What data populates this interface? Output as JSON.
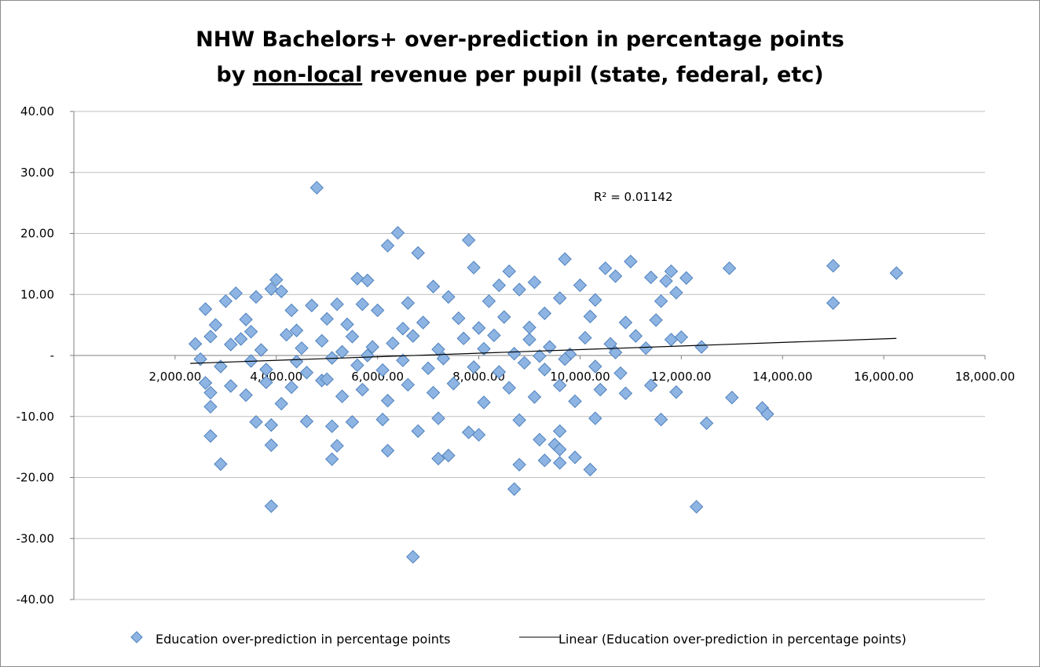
{
  "chart_data": {
    "type": "scatter",
    "title_line1": "NHW Bachelors+ over-prediction in percentage points",
    "title_line2_prefix": "by ",
    "title_line2_underlined": "non-local",
    "title_line2_suffix": " revenue per pupil (state, federal, etc)",
    "xlabel": "",
    "ylabel": "",
    "xlim": [
      0,
      18000
    ],
    "ylim": [
      -40,
      40
    ],
    "x_ticks": [
      {
        "value": 2000,
        "label": "2,000.00"
      },
      {
        "value": 4000,
        "label": "4,000.00"
      },
      {
        "value": 6000,
        "label": "6,000.00"
      },
      {
        "value": 8000,
        "label": "8,000.00"
      },
      {
        "value": 10000,
        "label": "10,000.00"
      },
      {
        "value": 12000,
        "label": "12,000.00"
      },
      {
        "value": 14000,
        "label": "14,000.00"
      },
      {
        "value": 16000,
        "label": "16,000.00"
      },
      {
        "value": 18000,
        "label": "18,000.00"
      }
    ],
    "y_ticks": [
      {
        "value": 40,
        "label": "40.00"
      },
      {
        "value": 30,
        "label": "30.00"
      },
      {
        "value": 20,
        "label": "20.00"
      },
      {
        "value": 10,
        "label": "10.00"
      },
      {
        "value": 0,
        "label": "-"
      },
      {
        "value": -10,
        "label": "-10.00"
      },
      {
        "value": -20,
        "label": "-20.00"
      },
      {
        "value": -30,
        "label": "-30.00"
      },
      {
        "value": -40,
        "label": "-40.00"
      }
    ],
    "grid": true,
    "legend_position": "bottom",
    "series": [
      {
        "name": "Education over-prediction in percentage points",
        "marker_color": "#8db4e2",
        "marker_stroke": "#4f81bd",
        "points": [
          [
            4800,
            27.5
          ],
          [
            6400,
            20.1
          ],
          [
            6200,
            18.0
          ],
          [
            7800,
            18.9
          ],
          [
            6800,
            16.8
          ],
          [
            9700,
            15.8
          ],
          [
            11000,
            15.4
          ],
          [
            15000,
            14.7
          ],
          [
            12950,
            14.3
          ],
          [
            16250,
            13.5
          ],
          [
            10500,
            14.3
          ],
          [
            8600,
            13.8
          ],
          [
            5600,
            12.6
          ],
          [
            5800,
            12.3
          ],
          [
            4000,
            12.4
          ],
          [
            7900,
            14.4
          ],
          [
            10700,
            13.0
          ],
          [
            11400,
            12.8
          ],
          [
            11800,
            13.8
          ],
          [
            12100,
            12.7
          ],
          [
            9100,
            12.0
          ],
          [
            8400,
            11.5
          ],
          [
            7100,
            11.3
          ],
          [
            10000,
            11.5
          ],
          [
            11700,
            12.2
          ],
          [
            3900,
            10.9
          ],
          [
            4100,
            10.5
          ],
          [
            3200,
            10.2
          ],
          [
            8800,
            10.8
          ],
          [
            10300,
            9.1
          ],
          [
            11900,
            10.3
          ],
          [
            15000,
            8.6
          ],
          [
            2600,
            7.6
          ],
          [
            3000,
            8.9
          ],
          [
            4700,
            8.2
          ],
          [
            5200,
            8.4
          ],
          [
            5700,
            8.4
          ],
          [
            6600,
            8.6
          ],
          [
            7400,
            9.6
          ],
          [
            8200,
            8.9
          ],
          [
            9600,
            9.4
          ],
          [
            11600,
            8.9
          ],
          [
            2800,
            5.0
          ],
          [
            3400,
            5.9
          ],
          [
            3600,
            9.6
          ],
          [
            4300,
            7.4
          ],
          [
            5000,
            6.0
          ],
          [
            5400,
            5.1
          ],
          [
            6000,
            7.4
          ],
          [
            6900,
            5.4
          ],
          [
            7600,
            6.1
          ],
          [
            8500,
            6.3
          ],
          [
            9300,
            6.9
          ],
          [
            10200,
            6.4
          ],
          [
            10900,
            5.4
          ],
          [
            11500,
            5.8
          ],
          [
            2400,
            1.9
          ],
          [
            2700,
            3.1
          ],
          [
            3100,
            1.8
          ],
          [
            3300,
            2.7
          ],
          [
            3700,
            0.9
          ],
          [
            4200,
            3.4
          ],
          [
            4500,
            1.2
          ],
          [
            4900,
            2.4
          ],
          [
            5300,
            0.6
          ],
          [
            5500,
            3.1
          ],
          [
            5900,
            1.4
          ],
          [
            6300,
            2.0
          ],
          [
            6700,
            3.2
          ],
          [
            7200,
            1.0
          ],
          [
            7700,
            2.8
          ],
          [
            8100,
            1.1
          ],
          [
            8300,
            3.3
          ],
          [
            8700,
            0.3
          ],
          [
            9000,
            2.6
          ],
          [
            9400,
            1.4
          ],
          [
            9800,
            0.2
          ],
          [
            10100,
            2.9
          ],
          [
            10600,
            1.9
          ],
          [
            11100,
            3.2
          ],
          [
            11300,
            1.2
          ],
          [
            11800,
            2.6
          ],
          [
            12400,
            1.4
          ],
          [
            12000,
            3.0
          ],
          [
            2500,
            -0.6
          ],
          [
            2900,
            -1.8
          ],
          [
            3500,
            -0.9
          ],
          [
            3800,
            -2.3
          ],
          [
            4400,
            -1.0
          ],
          [
            4600,
            -2.8
          ],
          [
            5100,
            -0.4
          ],
          [
            5600,
            -1.6
          ],
          [
            6100,
            -2.4
          ],
          [
            6500,
            -0.8
          ],
          [
            7000,
            -2.1
          ],
          [
            7300,
            -0.5
          ],
          [
            7900,
            -1.9
          ],
          [
            8400,
            -2.7
          ],
          [
            8900,
            -1.2
          ],
          [
            9300,
            -2.3
          ],
          [
            9700,
            -0.6
          ],
          [
            10300,
            -1.8
          ],
          [
            10800,
            -2.9
          ],
          [
            2600,
            -4.5
          ],
          [
            2700,
            -6.1
          ],
          [
            3100,
            -5.0
          ],
          [
            3400,
            -6.5
          ],
          [
            3800,
            -4.4
          ],
          [
            4100,
            -7.9
          ],
          [
            4300,
            -5.2
          ],
          [
            4900,
            -4.1
          ],
          [
            5300,
            -6.7
          ],
          [
            5700,
            -5.6
          ],
          [
            6200,
            -7.4
          ],
          [
            6600,
            -4.8
          ],
          [
            7100,
            -6.1
          ],
          [
            7500,
            -4.6
          ],
          [
            8100,
            -7.7
          ],
          [
            8600,
            -5.3
          ],
          [
            9100,
            -6.8
          ],
          [
            9600,
            -4.9
          ],
          [
            9900,
            -7.5
          ],
          [
            10400,
            -5.6
          ],
          [
            10900,
            -6.2
          ],
          [
            11400,
            -4.9
          ],
          [
            11900,
            -6.0
          ],
          [
            13000,
            -6.9
          ],
          [
            13600,
            -8.6
          ],
          [
            13700,
            -9.6
          ],
          [
            2700,
            -8.4
          ],
          [
            3600,
            -10.9
          ],
          [
            3900,
            -11.4
          ],
          [
            4600,
            -10.8
          ],
          [
            5100,
            -11.6
          ],
          [
            5500,
            -10.9
          ],
          [
            6100,
            -10.5
          ],
          [
            6800,
            -12.4
          ],
          [
            7200,
            -10.3
          ],
          [
            7800,
            -12.6
          ],
          [
            8000,
            -13.0
          ],
          [
            8800,
            -10.6
          ],
          [
            9200,
            -13.8
          ],
          [
            9600,
            -12.4
          ],
          [
            10300,
            -10.3
          ],
          [
            11600,
            -10.5
          ],
          [
            12500,
            -11.1
          ],
          [
            2700,
            -13.2
          ],
          [
            5200,
            -14.8
          ],
          [
            6200,
            -15.6
          ],
          [
            7200,
            -16.9
          ],
          [
            7400,
            -16.4
          ],
          [
            9500,
            -14.6
          ],
          [
            9600,
            -15.4
          ],
          [
            9900,
            -16.7
          ],
          [
            2900,
            -17.8
          ],
          [
            5100,
            -17.0
          ],
          [
            8800,
            -17.9
          ],
          [
            9300,
            -17.2
          ],
          [
            9600,
            -17.6
          ],
          [
            10200,
            -18.7
          ],
          [
            8700,
            -21.9
          ],
          [
            3900,
            -24.7
          ],
          [
            12300,
            -24.8
          ],
          [
            6700,
            -33.0
          ],
          [
            3900,
            -14.7
          ],
          [
            9000,
            4.6
          ],
          [
            8000,
            4.5
          ],
          [
            6500,
            4.4
          ],
          [
            4400,
            4.1
          ],
          [
            3500,
            3.9
          ],
          [
            5000,
            -3.9
          ],
          [
            5800,
            0.0
          ],
          [
            9200,
            -0.1
          ],
          [
            10700,
            0.5
          ]
        ]
      },
      {
        "name": "Linear (Education over-prediction in percentage points)",
        "line_color": "#000000",
        "start": [
          2300,
          -1.3
        ],
        "end": [
          16250,
          2.8
        ]
      }
    ],
    "r_squared_label": "R² = 0.01142"
  }
}
